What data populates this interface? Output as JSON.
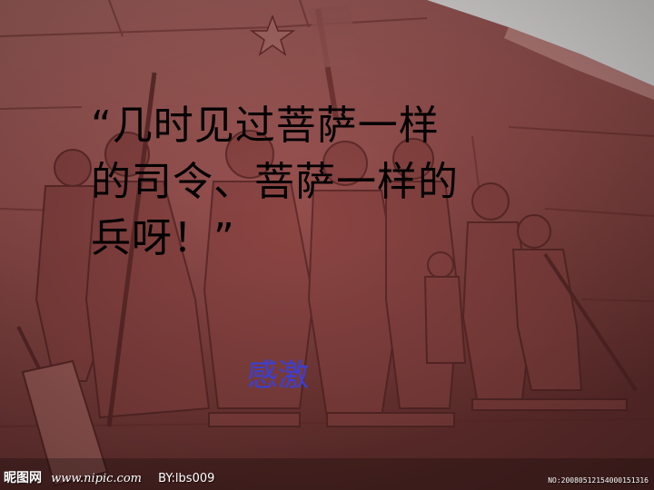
{
  "quote": {
    "lines": [
      "“几时见过菩萨一样",
      "的司令、菩萨一样的",
      "兵呀！”"
    ]
  },
  "emphasis_word": "感激",
  "watermark": {
    "brand": "昵图网",
    "site": "www.nipic.com",
    "author": "BY:lbs009",
    "image_number": "NO:20080512154000151316"
  },
  "colors": {
    "quote_text": "#000000",
    "emphasis_text": "#3a3fd8",
    "stone": "#9e5452"
  }
}
